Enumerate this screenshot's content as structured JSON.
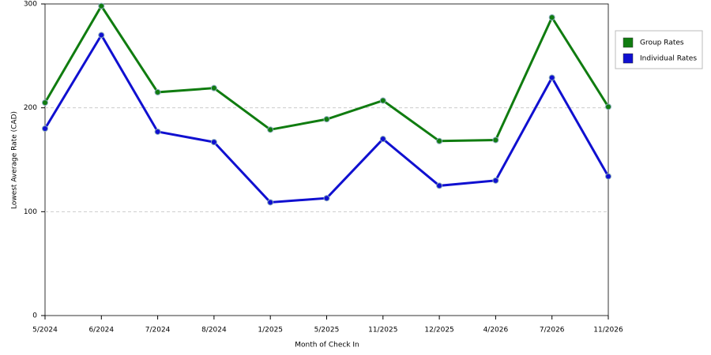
{
  "chart_data": {
    "type": "line",
    "xlabel": "Month of Check In",
    "ylabel": "Lowest Average Rate (CAD)",
    "categories": [
      "5/2024",
      "6/2024",
      "7/2024",
      "8/2024",
      "1/2025",
      "5/2025",
      "11/2025",
      "12/2025",
      "4/2026",
      "7/2026",
      "11/2026"
    ],
    "series": [
      {
        "name": "Group Rates",
        "color": "#107c10",
        "values": [
          205,
          298,
          215,
          219,
          179,
          189,
          207,
          168,
          169,
          287,
          201
        ]
      },
      {
        "name": "Individual Rates",
        "color": "#1010d0",
        "values": [
          180,
          270,
          177,
          167,
          109,
          113,
          170,
          125,
          130,
          229,
          134
        ]
      }
    ],
    "ylim": [
      0,
      300
    ],
    "yticks": [
      0,
      100,
      200,
      300
    ],
    "grid": true,
    "legend": "right"
  }
}
